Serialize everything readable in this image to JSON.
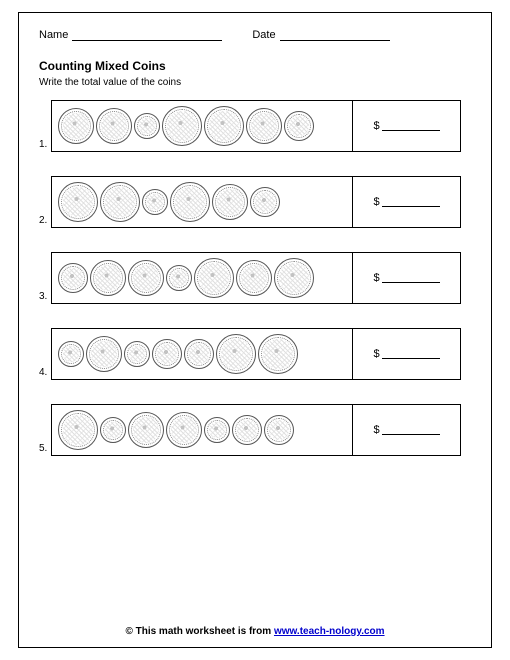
{
  "header": {
    "name_label": "Name",
    "date_label": "Date"
  },
  "title": "Counting Mixed Coins",
  "instruction": "Write the total value of the coins",
  "coin_sizes": {
    "quarter": 40,
    "nickel": 36,
    "penny": 30,
    "dime": 26
  },
  "coin_color": "#666666",
  "answer_prefix": "$",
  "problems": [
    {
      "number": "1.",
      "coins": [
        "nickel",
        "nickel",
        "dime",
        "quarter",
        "quarter",
        "nickel",
        "penny"
      ]
    },
    {
      "number": "2.",
      "coins": [
        "quarter",
        "quarter",
        "dime",
        "quarter",
        "nickel",
        "penny"
      ]
    },
    {
      "number": "3.",
      "coins": [
        "penny",
        "nickel",
        "nickel",
        "dime",
        "quarter",
        "nickel",
        "quarter"
      ]
    },
    {
      "number": "4.",
      "coins": [
        "dime",
        "nickel",
        "dime",
        "penny",
        "penny",
        "quarter",
        "quarter"
      ]
    },
    {
      "number": "5.",
      "coins": [
        "quarter",
        "dime",
        "nickel",
        "nickel",
        "dime",
        "penny",
        "penny"
      ]
    }
  ],
  "footer": {
    "prefix": "© This math worksheet is from ",
    "link_text": "www.teach-nology.com"
  }
}
